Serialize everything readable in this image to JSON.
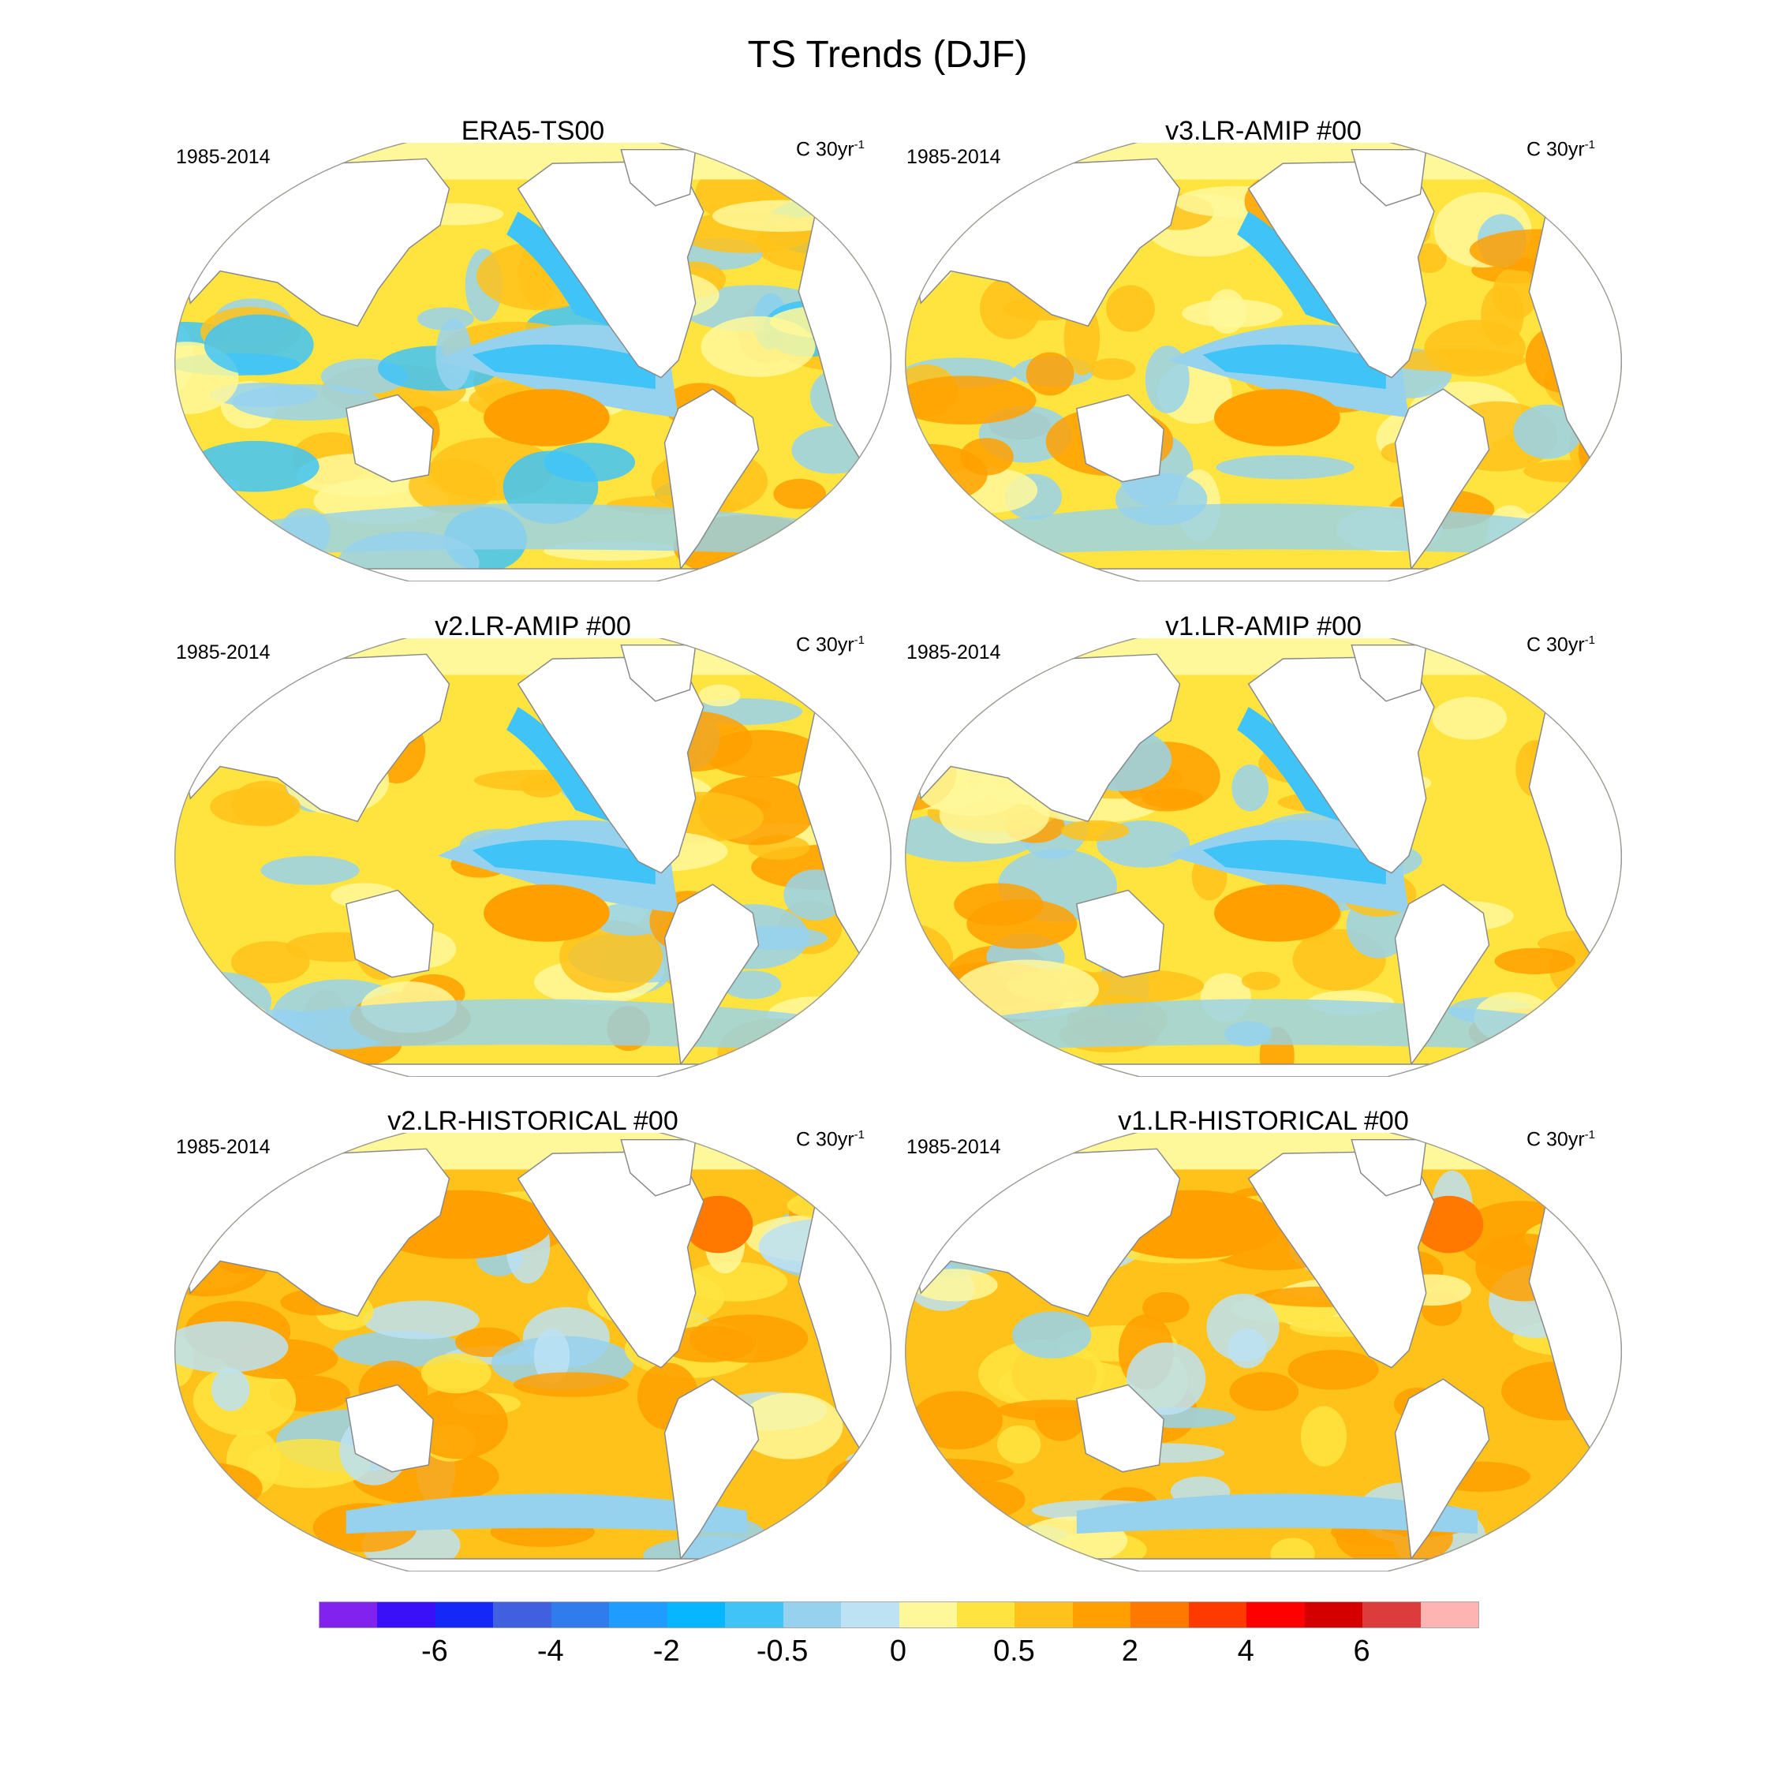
{
  "chart_data": {
    "type": "heatmap",
    "title": "TS Trends (DJF)",
    "panels": [
      {
        "title": "ERA5-TS00",
        "period": "1985-2014",
        "units": "C 30yr",
        "units_sup": "-1",
        "pattern": "era5"
      },
      {
        "title": "v3.LR-AMIP  #00",
        "period": "1985-2014",
        "units": "C 30yr",
        "units_sup": "-1",
        "pattern": "amip"
      },
      {
        "title": "v2.LR-AMIP  #00",
        "period": "1985-2014",
        "units": "C 30yr",
        "units_sup": "-1",
        "pattern": "amip"
      },
      {
        "title": "v1.LR-AMIP  #00",
        "period": "1985-2014",
        "units": "C 30yr",
        "units_sup": "-1",
        "pattern": "amip"
      },
      {
        "title": "v2.LR-HISTORICAL  #00",
        "period": "1985-2014",
        "units": "C 30yr",
        "units_sup": "-1",
        "pattern": "hist"
      },
      {
        "title": "v1.LR-HISTORICAL  #00",
        "period": "1985-2014",
        "units": "C 30yr",
        "units_sup": "-1",
        "pattern": "hist"
      }
    ],
    "colorbar": {
      "colors": [
        "#8122EE",
        "#3A10F8",
        "#1428F8",
        "#4060E0",
        "#307CEC",
        "#1E9CFF",
        "#06B6FF",
        "#40C4F8",
        "#96D2EE",
        "#BCE2F4",
        "#FFF89A",
        "#FFE440",
        "#FFC21A",
        "#FFA000",
        "#FF7800",
        "#FF3A00",
        "#FF0000",
        "#D40000",
        "#DC3C3C",
        "#FFB4B4"
      ],
      "labels": [
        {
          "text": "-6",
          "boundary": 2
        },
        {
          "text": "-4",
          "boundary": 4
        },
        {
          "text": "-2",
          "boundary": 6
        },
        {
          "text": "-0.5",
          "boundary": 8
        },
        {
          "text": "0",
          "boundary": 10
        },
        {
          "text": "0.5",
          "boundary": 12
        },
        {
          "text": "2",
          "boundary": 14
        },
        {
          "text": "4",
          "boundary": 16
        },
        {
          "text": "6",
          "boundary": 18
        }
      ]
    }
  }
}
